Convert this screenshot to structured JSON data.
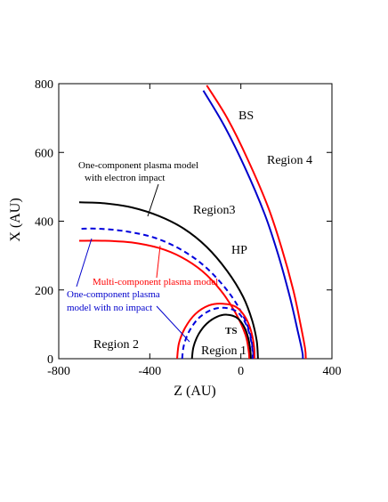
{
  "chart_data": {
    "type": "line",
    "xlabel": "Z (AU)",
    "ylabel": "X (AU)",
    "xlim": [
      -800,
      400
    ],
    "ylim": [
      0,
      800
    ],
    "xticks": [
      -800,
      -400,
      0,
      400
    ],
    "yticks": [
      0,
      200,
      400,
      600,
      800
    ],
    "grid": false,
    "series": [
      {
        "key": "bs_multi",
        "color": "#ff0000",
        "dash": false,
        "points": [
          [
            -150,
            795
          ],
          [
            -60,
            700
          ],
          [
            30,
            580
          ],
          [
            120,
            440
          ],
          [
            180,
            320
          ],
          [
            230,
            200
          ],
          [
            262,
            100
          ],
          [
            282,
            30
          ],
          [
            285,
            0
          ]
        ]
      },
      {
        "key": "bs_one",
        "color": "#0000cc",
        "dash": false,
        "points": [
          [
            -165,
            780
          ],
          [
            -75,
            680
          ],
          [
            15,
            560
          ],
          [
            105,
            420
          ],
          [
            165,
            300
          ],
          [
            215,
            180
          ],
          [
            250,
            80
          ],
          [
            270,
            20
          ],
          [
            272,
            0
          ]
        ]
      },
      {
        "key": "hp_electron",
        "color": "#000000",
        "dash": false,
        "points": [
          [
            -710,
            455
          ],
          [
            -600,
            452
          ],
          [
            -480,
            440
          ],
          [
            -360,
            415
          ],
          [
            -250,
            378
          ],
          [
            -150,
            325
          ],
          [
            -60,
            255
          ],
          [
            10,
            180
          ],
          [
            50,
            110
          ],
          [
            70,
            50
          ],
          [
            75,
            0
          ]
        ]
      },
      {
        "key": "hp_noimpact",
        "color": "#0000dd",
        "dash": true,
        "points": [
          [
            -700,
            378
          ],
          [
            -620,
            378
          ],
          [
            -500,
            370
          ],
          [
            -380,
            352
          ],
          [
            -270,
            320
          ],
          [
            -170,
            275
          ],
          [
            -80,
            215
          ],
          [
            -10,
            150
          ],
          [
            35,
            85
          ],
          [
            52,
            30
          ],
          [
            55,
            0
          ]
        ]
      },
      {
        "key": "hp_multi",
        "color": "#ff0000",
        "dash": false,
        "points": [
          [
            -710,
            343
          ],
          [
            -600,
            343
          ],
          [
            -480,
            338
          ],
          [
            -360,
            322
          ],
          [
            -260,
            295
          ],
          [
            -170,
            255
          ],
          [
            -90,
            200
          ],
          [
            -25,
            135
          ],
          [
            20,
            70
          ],
          [
            35,
            20
          ],
          [
            37,
            0
          ]
        ]
      },
      {
        "key": "ts_multi",
        "color": "#ff0000",
        "dash": false,
        "points": [
          [
            -280,
            0
          ],
          [
            -272,
            45
          ],
          [
            -245,
            90
          ],
          [
            -200,
            130
          ],
          [
            -140,
            155
          ],
          [
            -80,
            160
          ],
          [
            -20,
            150
          ],
          [
            20,
            120
          ],
          [
            45,
            80
          ],
          [
            58,
            35
          ],
          [
            60,
            0
          ]
        ]
      },
      {
        "key": "ts_noimpact",
        "color": "#0000dd",
        "dash": true,
        "points": [
          [
            -258,
            0
          ],
          [
            -250,
            40
          ],
          [
            -225,
            82
          ],
          [
            -185,
            118
          ],
          [
            -130,
            142
          ],
          [
            -75,
            148
          ],
          [
            -20,
            138
          ],
          [
            15,
            110
          ],
          [
            38,
            72
          ],
          [
            50,
            30
          ],
          [
            52,
            0
          ]
        ]
      },
      {
        "key": "ts_electron",
        "color": "#000000",
        "dash": false,
        "points": [
          [
            -215,
            0
          ],
          [
            -208,
            35
          ],
          [
            -185,
            72
          ],
          [
            -150,
            102
          ],
          [
            -105,
            122
          ],
          [
            -60,
            128
          ],
          [
            -15,
            118
          ],
          [
            15,
            92
          ],
          [
            33,
            58
          ],
          [
            42,
            22
          ],
          [
            44,
            0
          ]
        ]
      }
    ],
    "annotations": {
      "bs": "BS",
      "region4": "Region 4",
      "electron_model_line1": "One-component plasma model",
      "electron_model_line2": "with electron impact",
      "region3": "Region3",
      "hp": "HP",
      "multi_model": "Multi-component plasma model",
      "noimpact_line1": "One-component plasma",
      "noimpact_line2": "model  with no impact",
      "region2": "Region 2",
      "ts": "TS",
      "region1": "Region 1"
    }
  }
}
